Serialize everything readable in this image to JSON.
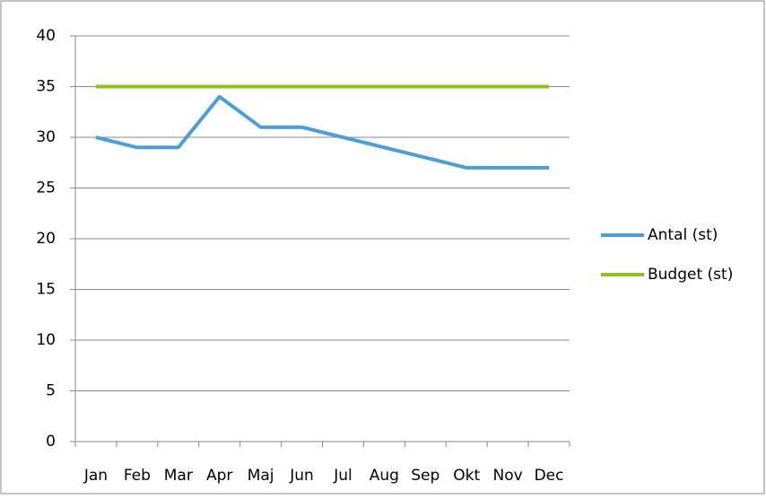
{
  "chart_data": {
    "type": "line",
    "categories": [
      "Jan",
      "Feb",
      "Mar",
      "Apr",
      "Maj",
      "Jun",
      "Jul",
      "Aug",
      "Sep",
      "Okt",
      "Nov",
      "Dec"
    ],
    "series": [
      {
        "name": "Antal (st)",
        "color": "#4a9fd8",
        "values": [
          30,
          29,
          29,
          34,
          31,
          31,
          30,
          29,
          28,
          27,
          27,
          27
        ]
      },
      {
        "name": "Budget (st)",
        "color": "#8dc21f",
        "values": [
          35,
          35,
          35,
          35,
          35,
          35,
          35,
          35,
          35,
          35,
          35,
          35
        ]
      }
    ],
    "ylim": [
      0,
      40
    ],
    "yticks": [
      0,
      5,
      10,
      15,
      20,
      25,
      30,
      35,
      40
    ],
    "grid": true,
    "legend": "right"
  }
}
